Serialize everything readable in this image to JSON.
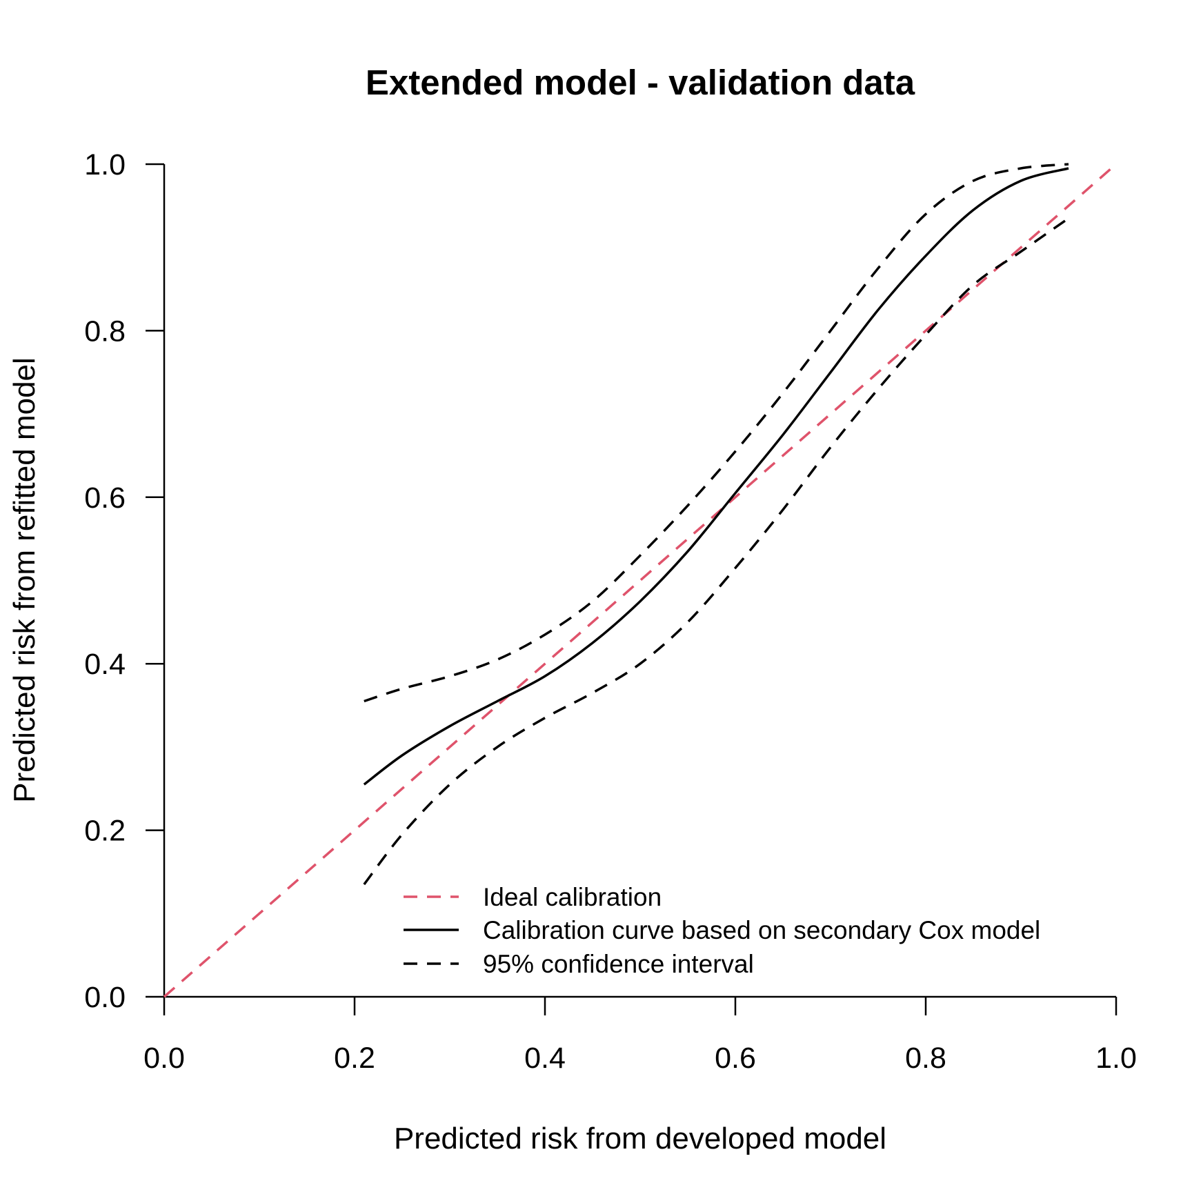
{
  "chart_data": {
    "type": "line",
    "title": "Extended model - validation data",
    "xlabel": "Predicted risk from developed model",
    "ylabel": "Predicted risk from refitted model",
    "xlim": [
      0,
      1
    ],
    "ylim": [
      0,
      1
    ],
    "x_ticks": [
      "0.0",
      "0.2",
      "0.4",
      "0.6",
      "0.8",
      "1.0"
    ],
    "y_ticks": [
      "0.0",
      "0.2",
      "0.4",
      "0.6",
      "0.8",
      "1.0"
    ],
    "grid": false,
    "legend_position": "bottom-right",
    "legend": [
      {
        "label": "Ideal calibration",
        "style": "dashed",
        "color": "#DF536B"
      },
      {
        "label": "Calibration curve based on secondary Cox model",
        "style": "solid",
        "color": "#000000"
      },
      {
        "label": "95% confidence interval",
        "style": "dashed",
        "color": "#000000"
      }
    ],
    "series": [
      {
        "name": "Ideal calibration",
        "color": "#DF536B",
        "style": "dashed",
        "x": [
          0.0,
          1.0
        ],
        "y": [
          0.0,
          1.0
        ]
      },
      {
        "name": "Calibration curve based on secondary Cox model",
        "color": "#000000",
        "style": "solid",
        "x": [
          0.21,
          0.25,
          0.3,
          0.35,
          0.4,
          0.45,
          0.5,
          0.55,
          0.6,
          0.65,
          0.7,
          0.75,
          0.8,
          0.85,
          0.9,
          0.95
        ],
        "y": [
          0.255,
          0.29,
          0.325,
          0.355,
          0.385,
          0.425,
          0.475,
          0.535,
          0.605,
          0.675,
          0.75,
          0.825,
          0.89,
          0.945,
          0.98,
          0.995
        ]
      },
      {
        "name": "95% confidence interval",
        "color": "#000000",
        "style": "dashed",
        "x": [
          0.21,
          0.25,
          0.3,
          0.35,
          0.4,
          0.45,
          0.5,
          0.55,
          0.6,
          0.65,
          0.7,
          0.75,
          0.8,
          0.85,
          0.9,
          0.95
        ],
        "y": [
          0.355,
          0.37,
          0.385,
          0.405,
          0.435,
          0.475,
          0.53,
          0.59,
          0.655,
          0.725,
          0.8,
          0.875,
          0.94,
          0.98,
          0.995,
          1.0
        ]
      },
      {
        "name": "95% confidence interval",
        "color": "#000000",
        "style": "dashed",
        "x": [
          0.21,
          0.25,
          0.3,
          0.35,
          0.4,
          0.45,
          0.5,
          0.55,
          0.6,
          0.65,
          0.7,
          0.75,
          0.8,
          0.85,
          0.9,
          0.95
        ],
        "y": [
          0.135,
          0.195,
          0.255,
          0.3,
          0.335,
          0.365,
          0.4,
          0.45,
          0.515,
          0.585,
          0.66,
          0.73,
          0.795,
          0.855,
          0.895,
          0.935
        ]
      }
    ]
  }
}
